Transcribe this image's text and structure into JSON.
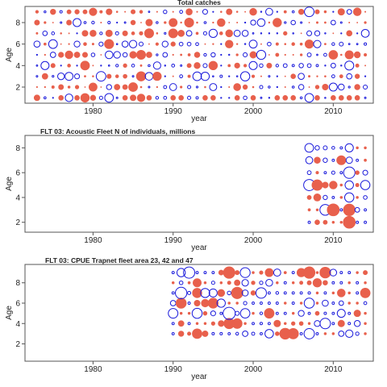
{
  "colors": {
    "positive": "#e8604c",
    "negative": "#1a1adb",
    "frame": "#555555",
    "text": "#222222"
  },
  "chart_data": [
    {
      "type": "scatter",
      "encoding": "bubble residuals: filled red = positive, open blue circle = negative, radius proportional to magnitude",
      "title": "Total catches",
      "xlabel": "year",
      "ylabel": "Age",
      "xlim": [
        1971.5,
        2015
      ],
      "ylim": [
        0.5,
        9.5
      ],
      "xticks": [
        1980,
        1990,
        2000,
        2010
      ],
      "yticks": [
        2,
        4,
        6,
        8
      ],
      "grid": false,
      "x_years": [
        1973,
        2014
      ],
      "y_ages": [
        1,
        9
      ]
    },
    {
      "type": "scatter",
      "encoding": "bubble residuals: filled red = positive, open blue circle = negative, radius proportional to magnitude",
      "title": "FLT 03: Acoustic Fleet   N of individuals, millions",
      "xlabel": "year",
      "ylabel": "Age",
      "xlim": [
        1971.5,
        2015
      ],
      "ylim": [
        1.2,
        9.0
      ],
      "xticks": [
        1980,
        1990,
        2000,
        2010
      ],
      "yticks": [
        2,
        4,
        6,
        8
      ],
      "grid": false,
      "x_years": [
        2007,
        2014
      ],
      "y_ages": [
        2,
        8
      ]
    },
    {
      "type": "scatter",
      "encoding": "bubble residuals: filled red = positive, open blue circle = negative, radius proportional to magnitude",
      "title": "FLT 03: CPUE Trapnet fleet area 23, 42 and 47",
      "xlabel": "year",
      "ylabel": "Age",
      "xlim": [
        1971.5,
        2015
      ],
      "ylim": [
        0.3,
        9.8
      ],
      "xticks": [
        1980,
        1990,
        2000,
        2010
      ],
      "yticks": [
        2,
        4,
        6,
        8
      ],
      "grid": false,
      "x_years": [
        1990,
        2014
      ],
      "y_ages": [
        3,
        9
      ]
    }
  ]
}
